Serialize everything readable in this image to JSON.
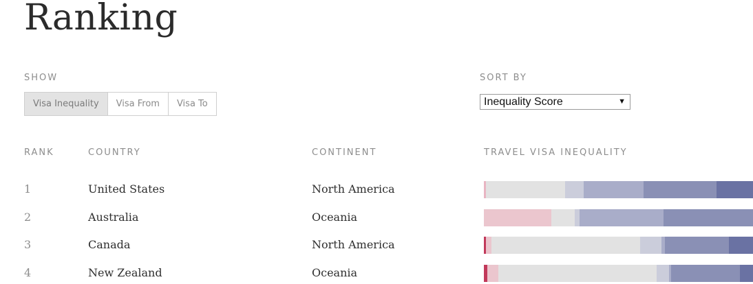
{
  "title": "Ranking",
  "show": {
    "label": "SHOW",
    "options": [
      "Visa Inequality",
      "Visa From",
      "Visa To"
    ],
    "active": "Visa Inequality"
  },
  "sort": {
    "label": "SORT BY",
    "value": "Inequality Score"
  },
  "columns": {
    "rank": "RANK",
    "country": "COUNTRY",
    "continent": "CONTINENT",
    "inequality": "TRAVEL VISA INEQUALITY"
  },
  "colors": {
    "deep_red": "#c2395a",
    "light_pink": "#ebc6ce",
    "grey": "#e2e2e2",
    "light_blue_grey": "#cbcddb",
    "mid_blue": "#a9adc9",
    "blue": "#8a90b5",
    "dark_blue": "#6a72a3"
  },
  "rows": [
    {
      "rank": "1",
      "country": "United States",
      "continent": "North America",
      "segments": [
        {
          "share": 0.8,
          "color": "#e8b5c2"
        },
        {
          "share": 29.5,
          "color": "#e2e2e2"
        },
        {
          "share": 6.7,
          "color": "#cbcddb"
        },
        {
          "share": 22.3,
          "color": "#a9adc9"
        },
        {
          "share": 27.1,
          "color": "#8a90b5"
        },
        {
          "share": 13.6,
          "color": "#6a72a3"
        }
      ]
    },
    {
      "rank": "2",
      "country": "Australia",
      "continent": "Oceania",
      "segments": [
        {
          "share": 25.1,
          "color": "#ebc6ce"
        },
        {
          "share": 8.7,
          "color": "#e2e2e2"
        },
        {
          "share": 1.8,
          "color": "#cbcddb"
        },
        {
          "share": 31.2,
          "color": "#a9adc9"
        },
        {
          "share": 33.2,
          "color": "#8a90b5"
        }
      ]
    },
    {
      "rank": "3",
      "country": "Canada",
      "continent": "North America",
      "segments": [
        {
          "share": 0.8,
          "color": "#c2395a"
        },
        {
          "share": 2.0,
          "color": "#ebc6ce"
        },
        {
          "share": 55.2,
          "color": "#e2e2e2"
        },
        {
          "share": 7.9,
          "color": "#cbcddb"
        },
        {
          "share": 1.3,
          "color": "#a9adc9"
        },
        {
          "share": 23.8,
          "color": "#8a90b5"
        },
        {
          "share": 9.0,
          "color": "#6a72a3"
        }
      ]
    },
    {
      "rank": "4",
      "country": "New Zealand",
      "continent": "Oceania",
      "segments": [
        {
          "share": 1.2,
          "color": "#c2395a"
        },
        {
          "share": 4.1,
          "color": "#ebc6ce"
        },
        {
          "share": 58.9,
          "color": "#e2e2e2"
        },
        {
          "share": 4.6,
          "color": "#cbcddb"
        },
        {
          "share": 0.8,
          "color": "#a9adc9"
        },
        {
          "share": 25.6,
          "color": "#8a90b5"
        },
        {
          "share": 4.8,
          "color": "#6a72a3"
        }
      ]
    }
  ]
}
